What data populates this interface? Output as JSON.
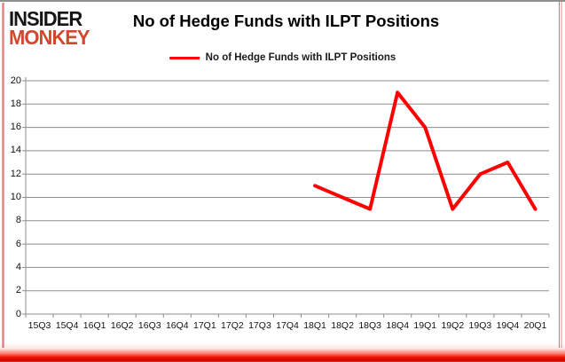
{
  "logo": {
    "line1": "INSIDER",
    "line2": "MONKEY",
    "color_line1": "#161616",
    "color_line2": "#d2472f"
  },
  "title": "No of Hedge Funds with ILPT Positions",
  "legend": {
    "label": "No of Hedge Funds with ILPT Positions",
    "swatch_color": "#ff0000"
  },
  "chart_data": {
    "type": "line",
    "title": "No of Hedge Funds with ILPT Positions",
    "xlabel": "",
    "ylabel": "",
    "categories": [
      "15Q3",
      "15Q4",
      "16Q1",
      "16Q2",
      "16Q3",
      "16Q4",
      "17Q1",
      "17Q2",
      "17Q3",
      "17Q4",
      "18Q1",
      "18Q2",
      "18Q3",
      "18Q4",
      "19Q1",
      "19Q2",
      "19Q3",
      "19Q4",
      "20Q1"
    ],
    "series": [
      {
        "name": "No of Hedge Funds with ILPT Positions",
        "color": "#ff0000",
        "values": [
          null,
          null,
          null,
          null,
          null,
          null,
          null,
          null,
          null,
          null,
          11,
          10,
          9,
          19,
          16,
          9,
          12,
          13,
          9
        ]
      }
    ],
    "ylim": [
      0,
      20
    ],
    "ytick_step": 2,
    "grid": true,
    "gridline_color": "#8d8d8d",
    "legend_position": "top"
  }
}
